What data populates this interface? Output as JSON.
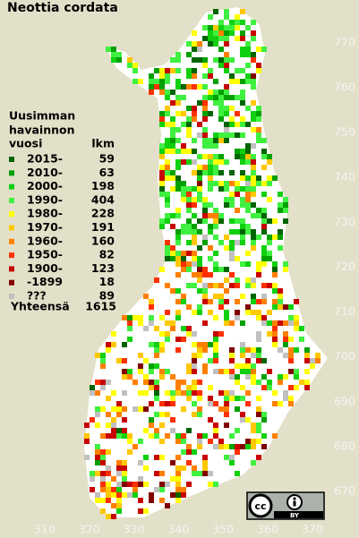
{
  "title": "Neottia cordata",
  "legend": {
    "header": [
      "Uusimman",
      "havainnon"
    ],
    "year_column": "vuosi",
    "count_column": "lkm",
    "rows": [
      {
        "label": "2015-",
        "count": 59,
        "color": "#006400"
      },
      {
        "label": "2010-",
        "count": 63,
        "color": "#00a000"
      },
      {
        "label": "2000-",
        "count": 198,
        "color": "#10d010"
      },
      {
        "label": "1990-",
        "count": 404,
        "color": "#40f040"
      },
      {
        "label": "1980-",
        "count": 228,
        "color": "#ffff00"
      },
      {
        "label": "1970-",
        "count": 191,
        "color": "#ffc800"
      },
      {
        "label": "1960-",
        "count": 160,
        "color": "#ff8000"
      },
      {
        "label": "1950-",
        "count": 82,
        "color": "#ff3000"
      },
      {
        "label": "1900-",
        "count": 123,
        "color": "#c80000"
      },
      {
        "label": "-1899",
        "count": 18,
        "color": "#800000"
      },
      {
        "label": "???",
        "count": 89,
        "color": "#c0c0c0"
      }
    ],
    "total_label": "Yhteensä",
    "total": 1615
  },
  "x_labels": [
    310,
    320,
    330,
    340,
    350,
    360,
    370
  ],
  "y_labels": [
    770,
    760,
    750,
    740,
    730,
    720,
    710,
    700,
    690,
    680,
    670
  ],
  "license": {
    "cc": "cc",
    "by": "BY"
  }
}
